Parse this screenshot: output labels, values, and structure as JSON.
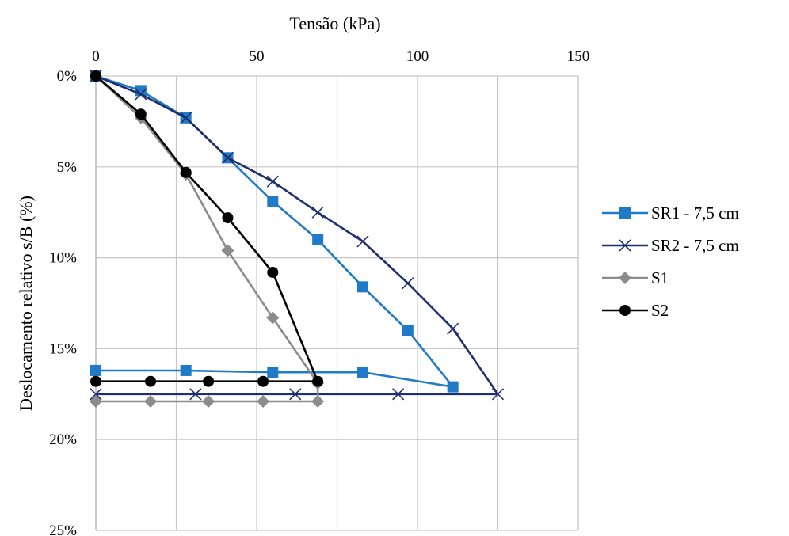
{
  "chart_data": {
    "type": "line",
    "title": "",
    "xlabel": "Tensão (kPa)",
    "ylabel": "Deslocamento relativo s/B (%)",
    "xlim": [
      0,
      150
    ],
    "ylim": [
      0,
      25
    ],
    "y_inverted": true,
    "x_axis_position": "top",
    "x_ticks": [
      0,
      50,
      100,
      150
    ],
    "x_tick_labels": [
      "0",
      "50",
      "100",
      "150"
    ],
    "y_ticks": [
      0,
      5,
      10,
      15,
      20,
      25
    ],
    "y_tick_labels": [
      "0%",
      "5%",
      "10%",
      "15%",
      "20%",
      "25%"
    ],
    "grid": true,
    "legend_position": "right",
    "series": [
      {
        "name": "SR1 - 7,5 cm",
        "color": "#1f7bc8",
        "marker": "square",
        "points": [
          [
            0,
            0
          ],
          [
            14,
            0.8
          ],
          [
            28,
            2.3
          ],
          [
            41,
            4.5
          ],
          [
            55,
            6.9
          ],
          [
            69,
            9.0
          ],
          [
            83,
            11.6
          ],
          [
            97,
            14.0
          ],
          [
            111,
            17.1
          ],
          [
            83,
            16.3
          ],
          [
            55,
            16.3
          ],
          [
            28,
            16.2
          ],
          [
            0,
            16.2
          ]
        ]
      },
      {
        "name": "SR2 - 7,5 cm",
        "color": "#1f2f6e",
        "marker": "x",
        "points": [
          [
            0,
            0
          ],
          [
            14,
            1.0
          ],
          [
            28,
            2.3
          ],
          [
            41,
            4.5
          ],
          [
            55,
            5.8
          ],
          [
            69,
            7.5
          ],
          [
            83,
            9.1
          ],
          [
            97,
            11.4
          ],
          [
            111,
            13.9
          ],
          [
            125,
            17.5
          ],
          [
            94,
            17.5
          ],
          [
            62,
            17.5
          ],
          [
            31,
            17.5
          ],
          [
            0,
            17.5
          ]
        ]
      },
      {
        "name": "S1",
        "color": "#8c8c8c",
        "marker": "diamond",
        "points": [
          [
            0,
            0
          ],
          [
            14,
            2.3
          ],
          [
            28,
            5.4
          ],
          [
            41,
            9.6
          ],
          [
            55,
            13.3
          ],
          [
            69,
            16.9
          ],
          [
            69,
            17.9
          ],
          [
            52,
            17.9
          ],
          [
            35,
            17.9
          ],
          [
            17,
            17.9
          ],
          [
            0,
            17.9
          ]
        ]
      },
      {
        "name": "S2",
        "color": "#000000",
        "marker": "circle",
        "points": [
          [
            0,
            0
          ],
          [
            14,
            2.1
          ],
          [
            28,
            5.3
          ],
          [
            41,
            7.8
          ],
          [
            55,
            10.8
          ],
          [
            69,
            16.8
          ],
          [
            52,
            16.8
          ],
          [
            35,
            16.8
          ],
          [
            17,
            16.8
          ],
          [
            0,
            16.8
          ]
        ]
      }
    ]
  }
}
